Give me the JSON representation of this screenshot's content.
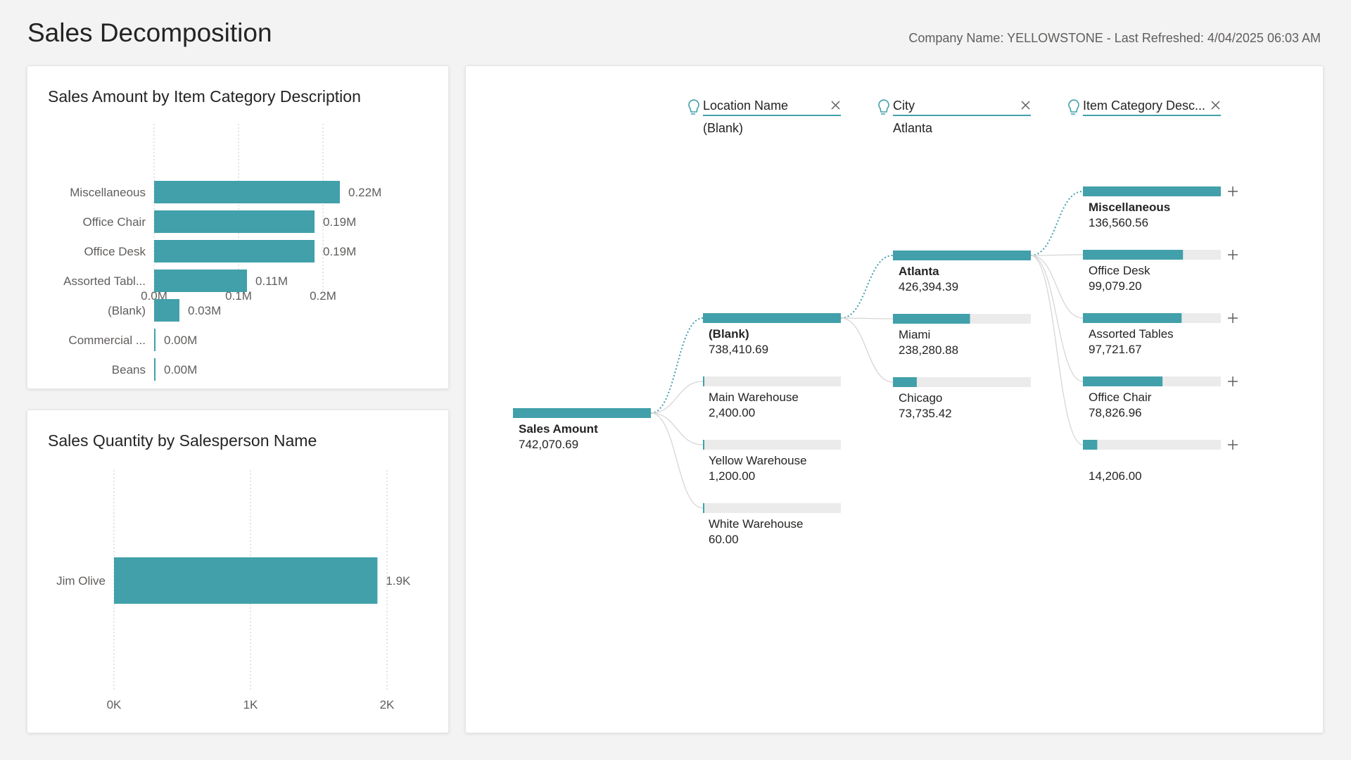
{
  "header": {
    "title": "Sales Decomposition",
    "info": "Company Name: YELLOWSTONE - Last Refreshed: 4/04/2025 06:03 AM"
  },
  "colors": {
    "bar": "#41a0aa",
    "track": "#ebebeb",
    "grid": "#c8c8c8",
    "text": "#252423",
    "muted": "#605e5c"
  },
  "chart_data": [
    {
      "type": "bar",
      "orientation": "horizontal",
      "title": "Sales Amount by Item Category Description",
      "categories": [
        "Miscellaneous",
        "Office Chair",
        "Office Desk",
        "Assorted Tabl...",
        "(Blank)",
        "Commercial ...",
        "Beans"
      ],
      "values": [
        0.22,
        0.19,
        0.19,
        0.11,
        0.03,
        0.0,
        0.0
      ],
      "data_labels": [
        "0.22M",
        "0.19M",
        "0.19M",
        "0.11M",
        "0.03M",
        "0.00M",
        "0.00M"
      ],
      "xticks": [
        "0.0M",
        "0.1M",
        "0.2M"
      ],
      "xlim": [
        0,
        0.22
      ],
      "grid": true
    },
    {
      "type": "bar",
      "orientation": "horizontal",
      "title": "Sales Quantity by Salesperson Name",
      "categories": [
        "Jim Olive"
      ],
      "values": [
        1.93
      ],
      "data_labels": [
        "1.9K"
      ],
      "xticks": [
        "0K",
        "1K",
        "2K"
      ],
      "xlim": [
        0,
        2
      ],
      "grid": true
    },
    {
      "type": "decomposition_tree",
      "levels": [
        {
          "name": "Location Name",
          "selected": "(Blank)"
        },
        {
          "name": "City",
          "selected": "Atlanta"
        },
        {
          "name": "Item Category Desc...",
          "selected": ""
        }
      ],
      "root": {
        "label": "Sales Amount",
        "value": "742,070.69",
        "amount": 742070.69
      },
      "columns": [
        [
          {
            "label": "(Blank)",
            "value": "738,410.69",
            "amount": 738410.69,
            "selected": true
          },
          {
            "label": "Main Warehouse",
            "value": "2,400.00",
            "amount": 2400.0
          },
          {
            "label": "Yellow Warehouse",
            "value": "1,200.00",
            "amount": 1200.0
          },
          {
            "label": "White Warehouse",
            "value": "60.00",
            "amount": 60.0
          }
        ],
        [
          {
            "label": "Atlanta",
            "value": "426,394.39",
            "amount": 426394.39,
            "selected": true
          },
          {
            "label": "Miami",
            "value": "238,280.88",
            "amount": 238280.88
          },
          {
            "label": "Chicago",
            "value": "73,735.42",
            "amount": 73735.42
          }
        ],
        [
          {
            "label": "Miscellaneous",
            "value": "136,560.56",
            "amount": 136560.56,
            "bold": true
          },
          {
            "label": "Office Desk",
            "value": "99,079.20",
            "amount": 99079.2
          },
          {
            "label": "Assorted Tables",
            "value": "97,721.67",
            "amount": 97721.67
          },
          {
            "label": "Office Chair",
            "value": "78,826.96",
            "amount": 78826.96
          },
          {
            "label": "",
            "value": "14,206.00",
            "amount": 14206.0
          }
        ]
      ]
    }
  ]
}
